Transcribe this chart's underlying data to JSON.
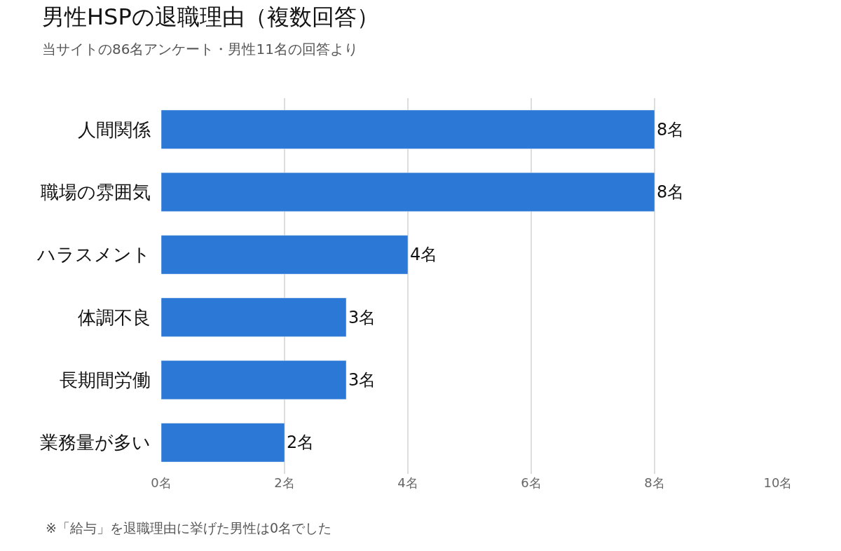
{
  "chart_data": {
    "type": "bar",
    "orientation": "horizontal",
    "title": "男性HSPの退職理由（複数回答）",
    "subtitle": "当サイトの86名アンケート・男性11名の回答より",
    "categories": [
      "人間関係",
      "職場の雰囲気",
      "ハラスメント",
      "体調不良",
      "長期間労働",
      "業務量が多い"
    ],
    "values": [
      8,
      8,
      4,
      3,
      3,
      2
    ],
    "value_labels": [
      "8名",
      "8名",
      "4名",
      "3名",
      "3名",
      "2名"
    ],
    "color": "#2b78d6",
    "xlim": [
      0,
      10
    ],
    "xticks": [
      {
        "value": 0,
        "label": "0名"
      },
      {
        "value": 2,
        "label": "2名"
      },
      {
        "value": 4,
        "label": "4名"
      },
      {
        "value": 6,
        "label": "6名"
      },
      {
        "value": 8,
        "label": "8名"
      },
      {
        "value": 10,
        "label": "10名"
      }
    ],
    "grid": "x",
    "annotations": [
      "※「給与」を退職理由に挙げた男性は0名でした"
    ]
  }
}
